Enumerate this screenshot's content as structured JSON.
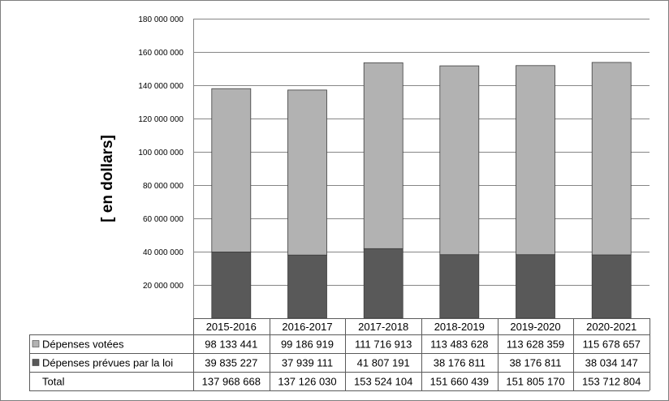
{
  "chart_data": {
    "type": "bar",
    "stacked": true,
    "ylabel": "[ en dollars]",
    "ylim": [
      0,
      180000000
    ],
    "yticks": [
      20000000,
      40000000,
      60000000,
      80000000,
      100000000,
      120000000,
      140000000,
      160000000,
      180000000
    ],
    "ytick_labels": [
      "20 000 000",
      "40 000 000",
      "60 000 000",
      "80 000 000",
      "100 000 000",
      "120 000 000",
      "140 000 000",
      "160 000 000",
      "180 000 000"
    ],
    "grid": true,
    "legend": "table-below",
    "categories": [
      "2015-2016",
      "2016-2017",
      "2017-2018",
      "2018-2019",
      "2019-2020",
      "2020-2021"
    ],
    "series": [
      {
        "name": "Dépenses prévues par la loi",
        "color": "#595959",
        "values": [
          39835227,
          37939111,
          41807191,
          38176811,
          38176811,
          38034147
        ],
        "labels": [
          "39 835 227",
          "37 939 111",
          "41 807 191",
          "38 176 811",
          "38 176 811",
          "38 034 147"
        ]
      },
      {
        "name": "Dépenses votées",
        "color": "#b2b2b2",
        "values": [
          98133441,
          99186919,
          111716913,
          113483628,
          113628359,
          115678657
        ],
        "labels": [
          "98 133 441",
          "99 186 919",
          "111 716 913",
          "113 483 628",
          "113 628 359",
          "115 678 657"
        ]
      }
    ],
    "total": {
      "name": "Total",
      "values": [
        137968668,
        137126030,
        153524104,
        151660439,
        151805170,
        153712804
      ],
      "labels": [
        "137 968 668",
        "137 126 030",
        "153 524 104",
        "151 660 439",
        "151 805 170",
        "153 712 804"
      ]
    }
  }
}
